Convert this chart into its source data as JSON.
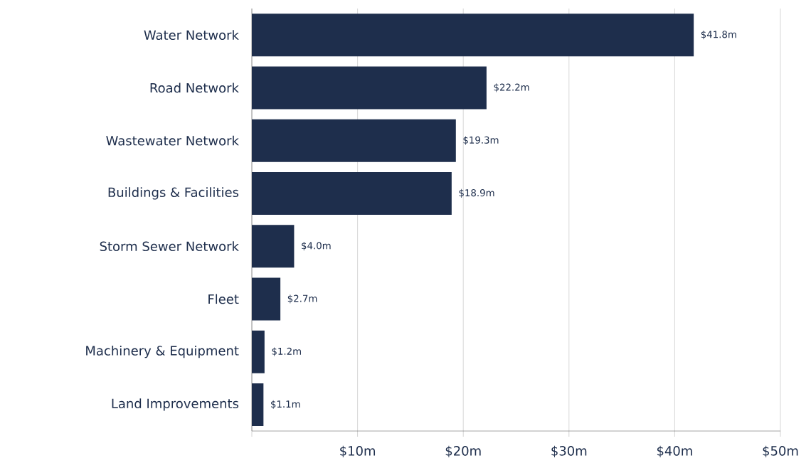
{
  "chart_data": {
    "type": "bar",
    "orientation": "horizontal",
    "categories": [
      "Water Network",
      "Road Network",
      "Wastewater Network",
      "Buildings & Facilities",
      "Storm Sewer Network",
      "Fleet",
      "Machinery & Equipment",
      "Land Improvements"
    ],
    "values": [
      41.8,
      22.2,
      19.3,
      18.9,
      4.0,
      2.7,
      1.2,
      1.1
    ],
    "value_labels": [
      "$41.8m",
      "$22.2m",
      "$19.3m",
      "$18.9m",
      "$4.0m",
      "$2.7m",
      "$1.2m",
      "$1.1m"
    ],
    "color": "#1e2e4c",
    "xlim": [
      0,
      50
    ],
    "xticks": [
      {
        "value": 0,
        "label": null
      },
      {
        "value": 10,
        "label": "$10m"
      },
      {
        "value": 20,
        "label": "$20m"
      },
      {
        "value": 30,
        "label": "$30m"
      },
      {
        "value": 40,
        "label": "$40m"
      },
      {
        "value": 50,
        "label": "$50m"
      }
    ],
    "grid": "x"
  }
}
